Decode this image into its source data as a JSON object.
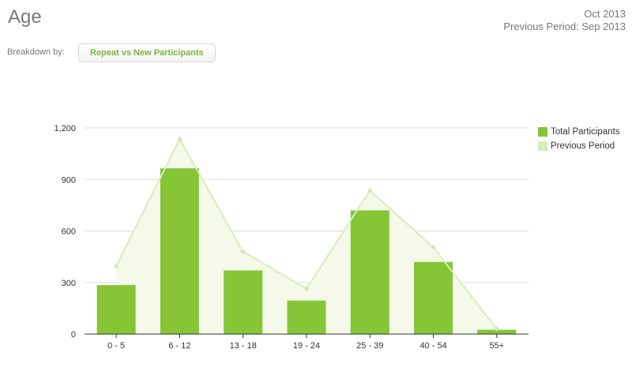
{
  "page": {
    "title": "Age",
    "period_current": "Oct 2013",
    "period_previous": "Previous Period: Sep 2013",
    "breakdown_label": "Breakdown by:",
    "breakdown_button": "Repeat vs New Participants"
  },
  "colors": {
    "bar": "#86c535",
    "previous_line": "#d8edbd",
    "previous_fill": "#f4f9ea",
    "previous_point": "#cfe8ad",
    "grid": "#dddddd",
    "axis": "#333333"
  },
  "chart_data": {
    "type": "bar",
    "categories": [
      "0 - 5",
      "6 - 12",
      "13 - 18",
      "19 - 24",
      "25 - 39",
      "40 - 54",
      "55+"
    ],
    "series": [
      {
        "name": "Total Participants",
        "type": "bar",
        "values": [
          285,
          965,
          370,
          195,
          720,
          420,
          25
        ]
      },
      {
        "name": "Previous Period",
        "type": "area",
        "values": [
          395,
          1135,
          480,
          265,
          835,
          505,
          30
        ]
      }
    ],
    "ylim": [
      0,
      1200
    ],
    "yticks": [
      0,
      300,
      600,
      900,
      1200
    ],
    "ytick_labels": [
      "0",
      "300",
      "600",
      "900",
      "1,200"
    ],
    "grid": true,
    "legend_position": "right",
    "title": "",
    "xlabel": "",
    "ylabel": ""
  }
}
